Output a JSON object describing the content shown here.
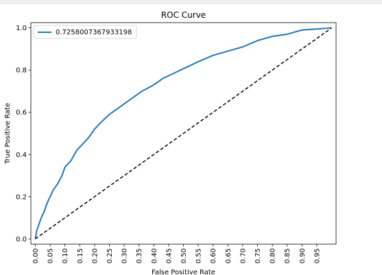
{
  "chart_data": {
    "type": "line",
    "title": "ROC Curve",
    "xlabel": "False Positive Rate",
    "ylabel": "True Positive Rate",
    "xlim": [
      -0.015,
      1.015
    ],
    "ylim": [
      -0.025,
      1.025
    ],
    "xticks": [
      "0.00",
      "0.05",
      "0.10",
      "0.15",
      "0.20",
      "0.25",
      "0.30",
      "0.35",
      "0.40",
      "0.45",
      "0.50",
      "0.55",
      "0.60",
      "0.65",
      "0.70",
      "0.75",
      "0.80",
      "0.85",
      "0.90",
      "0.95"
    ],
    "yticks": [
      "0.0",
      "0.2",
      "0.4",
      "0.6",
      "0.8",
      "1.0"
    ],
    "legend_position": "top-left",
    "grid": false,
    "series": [
      {
        "name": "0.7258007367933198",
        "color": "#1f77b4",
        "style": "solid",
        "x": [
          0.0,
          0.005,
          0.01,
          0.02,
          0.03,
          0.04,
          0.05,
          0.06,
          0.075,
          0.09,
          0.1,
          0.12,
          0.14,
          0.16,
          0.18,
          0.2,
          0.22,
          0.25,
          0.28,
          0.3,
          0.33,
          0.36,
          0.4,
          0.43,
          0.46,
          0.49,
          0.52,
          0.55,
          0.6,
          0.65,
          0.7,
          0.75,
          0.8,
          0.85,
          0.9,
          0.95,
          1.0
        ],
        "y": [
          0.0,
          0.04,
          0.06,
          0.1,
          0.13,
          0.17,
          0.2,
          0.23,
          0.26,
          0.3,
          0.34,
          0.37,
          0.42,
          0.45,
          0.48,
          0.52,
          0.55,
          0.59,
          0.62,
          0.64,
          0.67,
          0.7,
          0.73,
          0.76,
          0.78,
          0.8,
          0.82,
          0.84,
          0.87,
          0.89,
          0.91,
          0.94,
          0.96,
          0.97,
          0.99,
          0.995,
          1.0
        ]
      },
      {
        "name": "",
        "color": "#000000",
        "style": "dashed",
        "x": [
          0.0,
          1.0
        ],
        "y": [
          0.0,
          1.0
        ]
      }
    ]
  }
}
